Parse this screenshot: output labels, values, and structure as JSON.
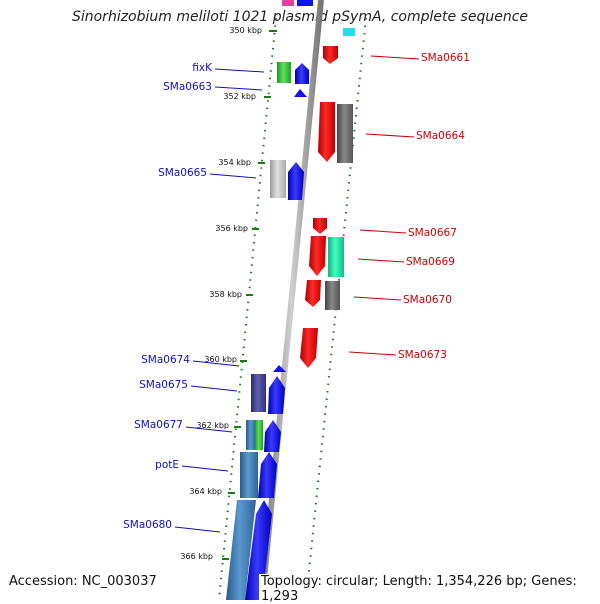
{
  "title": "Sinorhizobium meliloti 1021 plasmid pSymA, complete sequence",
  "footer": {
    "accession": "Accession: NC_003037",
    "topology": "Topology: circular; Length: 1,354,226 bp; Genes: 1,293"
  },
  "ticks": [
    "350 kbp",
    "352 kbp",
    "354 kbp",
    "356 kbp",
    "358 kbp",
    "360 kbp",
    "362 kbp",
    "364 kbp",
    "366 kbp"
  ],
  "left_genes": [
    "fixK",
    "SMa0663",
    "SMa0665",
    "SMa0674",
    "SMa0675",
    "SMa0677",
    "potE",
    "SMa0680"
  ],
  "right_genes": [
    "SMa0661",
    "SMa0664",
    "SMa0667",
    "SMa0669",
    "SMa0670",
    "SMa0673"
  ],
  "colors": {
    "forward_gene": "#1010ee",
    "reverse_gene": "#ee1010",
    "left_label": "#1010c0",
    "right_label": "#cc0000",
    "tick": "#1a7a1a",
    "backbone": "#888888"
  }
}
